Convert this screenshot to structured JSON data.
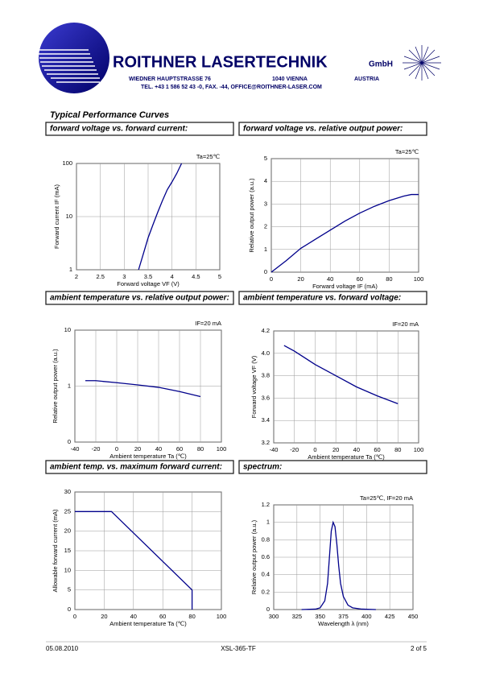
{
  "header": {
    "company": "ROITHNER LASERTECHNIK",
    "company_suffix": "GmbH",
    "address": "WIEDNER HAUPTSTRASSE 76",
    "city": "1040 VIENNA",
    "country": "AUSTRIA",
    "contact": "TEL. +43 1 586 52 43 -0, FAX. -44, OFFICE@ROITHNER-LASER.COM"
  },
  "section_title": "Typical Performance Curves",
  "chart_data": [
    {
      "type": "line",
      "title": "forward voltage vs. forward current:",
      "annotation": "Ta=25℃",
      "x_label": "Forward voltage VF (V)",
      "y_label": "Forward current  IF (mA)",
      "color": "#00008b",
      "log_y": true,
      "grid": true,
      "x": [
        3.3,
        3.4,
        3.5,
        3.6,
        3.7,
        3.8,
        3.9,
        4.0,
        4.1,
        4.2
      ],
      "values": [
        1,
        2,
        4,
        7,
        12,
        20,
        32,
        45,
        65,
        100
      ],
      "xlim": [
        2,
        5
      ],
      "xticks": [
        2,
        2.5,
        3,
        3.5,
        4,
        4.5,
        5
      ],
      "ylim": [
        1,
        100
      ],
      "yticks": [
        1,
        10,
        100
      ]
    },
    {
      "type": "line",
      "title": "forward voltage vs. relative output power:",
      "annotation": "Ta=25℃",
      "x_label": "Forward voltage IF (mA)",
      "y_label": "Relative output power (a.u.)",
      "color": "#00008b",
      "grid": true,
      "x": [
        0,
        10,
        20,
        30,
        40,
        50,
        60,
        70,
        80,
        90,
        95,
        100
      ],
      "values": [
        0,
        0.5,
        1.05,
        1.45,
        1.85,
        2.25,
        2.6,
        2.9,
        3.15,
        3.35,
        3.42,
        3.42
      ],
      "xlim": [
        0,
        100
      ],
      "xticks": [
        0,
        20,
        40,
        60,
        80,
        100
      ],
      "ylim": [
        0,
        5
      ],
      "yticks": [
        0,
        1,
        2,
        3,
        4,
        5
      ]
    },
    {
      "type": "line",
      "title": "ambient temperature vs. relative output power:",
      "annotation": "IF=20 mA",
      "x_label": "Ambient temperature Ta (℃)",
      "y_label": "Relative output power (a.u.)",
      "color": "#00008b",
      "log_y": true,
      "grid": true,
      "x": [
        -30,
        -20,
        0,
        20,
        40,
        60,
        80
      ],
      "values": [
        1.25,
        1.25,
        1.15,
        1.05,
        0.95,
        0.8,
        0.65
      ],
      "xlim": [
        -40,
        100
      ],
      "xticks": [
        -40,
        -20,
        0,
        20,
        40,
        60,
        80,
        100
      ],
      "ylim": [
        0.1,
        10
      ],
      "yticks": [
        {
          "value": 0.1,
          "label": "0"
        },
        1,
        10
      ]
    },
    {
      "type": "line",
      "title": "ambient temperature vs. forward voltage:",
      "annotation": "IF=20 mA",
      "x_label": "Ambient temperature Ta (℃)",
      "y_label": "Forward voltage VF (V)",
      "color": "#00008b",
      "grid": true,
      "x": [
        -30,
        -20,
        0,
        20,
        40,
        60,
        80
      ],
      "values": [
        4.07,
        4.02,
        3.9,
        3.8,
        3.7,
        3.62,
        3.55
      ],
      "xlim": [
        -40,
        100
      ],
      "xticks": [
        -40,
        -20,
        0,
        20,
        40,
        60,
        80,
        100
      ],
      "ylim": [
        3.2,
        4.2
      ],
      "yticks": [
        3.2,
        3.4,
        3.6,
        3.8,
        {
          "value": 4.0,
          "label": "4.0"
        },
        4.2
      ]
    },
    {
      "type": "line",
      "title": "ambient temp. vs. maximum forward current:",
      "x_label": "Ambient temperature Ta (℃)",
      "y_label": "Allowable forward current  (mA)",
      "color": "#00008b",
      "grid": true,
      "x": [
        0,
        25,
        80,
        80
      ],
      "values": [
        25,
        25,
        5,
        0
      ],
      "xlim": [
        0,
        100
      ],
      "xticks": [
        0,
        20,
        40,
        60,
        80,
        100
      ],
      "ylim": [
        0,
        30
      ],
      "yticks": [
        0,
        5,
        10,
        15,
        20,
        25,
        30
      ]
    },
    {
      "type": "line",
      "title": "spectrum:",
      "annotation": "Ta=25℃, IF=20 mA",
      "x_label": "Wavelength  λ  (nm)",
      "y_label": "Relative output power (a.u.)",
      "color": "#00008b",
      "grid": true,
      "x": [
        330,
        345,
        350,
        355,
        358,
        360,
        362,
        364,
        366,
        368,
        370,
        372,
        375,
        380,
        385,
        395,
        410
      ],
      "values": [
        0,
        0.005,
        0.02,
        0.1,
        0.3,
        0.6,
        0.9,
        1.0,
        0.95,
        0.75,
        0.5,
        0.3,
        0.15,
        0.05,
        0.02,
        0.005,
        0
      ],
      "xlim": [
        300,
        450
      ],
      "xticks": [
        300,
        325,
        350,
        375,
        400,
        425,
        450
      ],
      "ylim": [
        0,
        1.2
      ],
      "yticks": [
        0,
        0.2,
        0.4,
        0.6,
        0.8,
        1,
        1.2
      ]
    }
  ],
  "footer": {
    "date": "05.08.2010",
    "part": "XSL-365-TF",
    "page": "2 of 5"
  }
}
